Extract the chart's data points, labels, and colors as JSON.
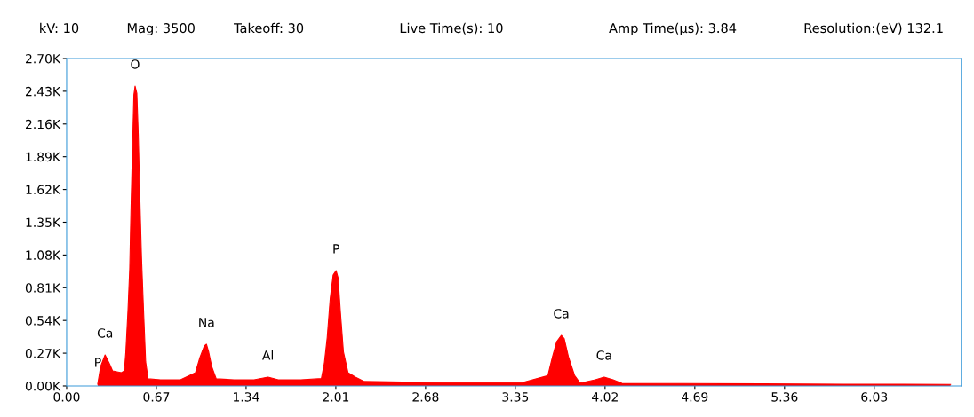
{
  "chart_data": {
    "type": "area",
    "annotations": [
      "kV: 10",
      "Mag: 3500",
      "Takeoff: 30",
      "Live Time(s): 10",
      "Amp Time(µs): 3.84",
      "Resolution:(eV) 132.1",
      {
        "text": "P",
        "x": 0.232,
        "y": 15
      },
      {
        "text": "Ca",
        "x": 0.287,
        "y": 256
      },
      {
        "text": "O",
        "x": 0.511,
        "y": 2473
      },
      {
        "text": "Na",
        "x": 1.044,
        "y": 344
      },
      {
        "text": "Al",
        "x": 1.504,
        "y": 73
      },
      {
        "text": "P",
        "x": 2.012,
        "y": 951
      },
      {
        "text": "Ca",
        "x": 3.693,
        "y": 417
      },
      {
        "text": "Ca",
        "x": 4.013,
        "y": 73
      }
    ],
    "x": [
      0.232,
      0.254,
      0.287,
      0.32,
      0.343,
      0.409,
      0.431,
      0.442,
      0.458,
      0.471,
      0.48,
      0.491,
      0.502,
      0.511,
      0.524,
      0.535,
      0.546,
      0.559,
      0.575,
      0.59,
      0.608,
      0.7,
      0.85,
      0.962,
      0.995,
      1.028,
      1.044,
      1.061,
      1.083,
      1.117,
      1.25,
      1.4,
      1.504,
      1.58,
      1.75,
      1.902,
      1.924,
      1.946,
      1.968,
      1.99,
      2.012,
      2.027,
      2.045,
      2.067,
      2.101,
      2.156,
      2.222,
      2.6,
      3.0,
      3.4,
      3.593,
      3.626,
      3.659,
      3.693,
      3.715,
      3.748,
      3.792,
      3.834,
      3.947,
      4.013,
      4.08,
      4.146,
      4.6,
      5.2,
      5.8,
      6.6
    ],
    "series": [
      {
        "color": "#ff0000",
        "values": [
          15,
          161,
          256,
          183,
          124,
          110,
          124,
          280,
          622,
          966,
          1441,
          1924,
          2400,
          2473,
          2414,
          2063,
          1573,
          1061,
          600,
          198,
          59,
          51,
          51,
          110,
          234,
          329,
          344,
          278,
          161,
          59,
          51,
          51,
          73,
          51,
          51,
          61,
          183,
          402,
          719,
          914,
          951,
          892,
          600,
          280,
          110,
          73,
          37,
          30,
          27,
          27,
          85,
          234,
          366,
          417,
          390,
          234,
          88,
          24,
          51,
          73,
          51,
          22,
          20,
          17,
          15,
          13
        ]
      }
    ],
    "xlim": [
      0,
      6.68
    ],
    "ylim": [
      0,
      2700
    ],
    "xticks": [
      {
        "value": 0,
        "label": "0.00"
      },
      {
        "value": 0.67,
        "label": "0.67"
      },
      {
        "value": 1.34,
        "label": "1.34"
      },
      {
        "value": 2.01,
        "label": "2.01"
      },
      {
        "value": 2.68,
        "label": "2.68"
      },
      {
        "value": 3.35,
        "label": "3.35"
      },
      {
        "value": 4.02,
        "label": "4.02"
      },
      {
        "value": 4.69,
        "label": "4.69"
      },
      {
        "value": 5.36,
        "label": "5.36"
      },
      {
        "value": 6.03,
        "label": "6.03"
      }
    ],
    "yticks": [
      {
        "value": 0,
        "label": "0.00K"
      },
      {
        "value": 270,
        "label": "0.27K"
      },
      {
        "value": 540,
        "label": "0.54K"
      },
      {
        "value": 810,
        "label": "0.81K"
      },
      {
        "value": 1080,
        "label": "1.08K"
      },
      {
        "value": 1350,
        "label": "1.35K"
      },
      {
        "value": 1620,
        "label": "1.62K"
      },
      {
        "value": 1890,
        "label": "1.89K"
      },
      {
        "value": 2160,
        "label": "2.16K"
      },
      {
        "value": 2430,
        "label": "2.43K"
      },
      {
        "value": 2700,
        "label": "2.70K"
      }
    ],
    "grid": false,
    "legend": false,
    "marker": "none"
  }
}
